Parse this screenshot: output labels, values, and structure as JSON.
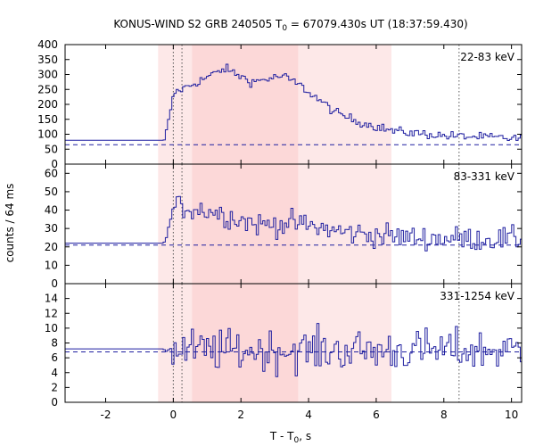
{
  "chart_data": {
    "type": "line",
    "title": "KONUS-WIND S2 GRB 240505 T",
    "title_sub": "0",
    "title_rest": " = 67079.430s UT (18:37:59.430)",
    "xlabel": "T - T",
    "xlabel_sub": "0",
    "xlabel_rest": ", s",
    "ylabel": "counts / 64 ms",
    "xlim": [
      -3.2,
      10.3
    ],
    "x_ticks": [
      -2,
      0,
      2,
      4,
      6,
      8,
      10
    ],
    "x_tick_labels": [
      "-2",
      "0",
      "2",
      "4",
      "6",
      "8",
      "10"
    ],
    "grid": false,
    "line_color": "#1f1fa0",
    "shade_color_light": "#fde8e8",
    "shade_color_dark": "#fcd8d8",
    "shaded_intervals": [
      {
        "x0": -0.45,
        "x1": 0.55,
        "tone": "light"
      },
      {
        "x0": 0.55,
        "x1": 3.7,
        "tone": "dark"
      },
      {
        "x0": 3.7,
        "x1": 6.45,
        "tone": "light"
      }
    ],
    "vertical_lines": [
      0.0,
      0.256,
      8.45
    ],
    "panels": [
      {
        "band": "22-83 keV",
        "ylim": [
          0,
          400
        ],
        "y_ticks": [
          0,
          50,
          100,
          150,
          200,
          250,
          300,
          350,
          400
        ],
        "y_tick_labels": [
          "0",
          "50",
          "100",
          "150",
          "200",
          "250",
          "300",
          "350",
          "400"
        ],
        "background": 65,
        "pre_level": 80,
        "peak_profile": [
          [
            -0.3,
            80
          ],
          [
            0.0,
            240
          ],
          [
            0.5,
            265
          ],
          [
            1.5,
            320
          ],
          [
            2.3,
            275
          ],
          [
            3.2,
            295
          ],
          [
            3.7,
            265
          ],
          [
            4.8,
            170
          ],
          [
            5.5,
            140
          ],
          [
            6.5,
            110
          ],
          [
            8.0,
            95
          ],
          [
            10.3,
            85
          ]
        ],
        "noise": 14
      },
      {
        "band": "83-331 keV",
        "ylim": [
          0,
          65
        ],
        "y_ticks": [
          0,
          10,
          20,
          30,
          40,
          50,
          60
        ],
        "y_tick_labels": [
          "0",
          "10",
          "20",
          "30",
          "40",
          "50",
          "60"
        ],
        "background": 21,
        "pre_level": 22,
        "peak_profile": [
          [
            -0.3,
            22
          ],
          [
            0.0,
            42
          ],
          [
            1.0,
            40
          ],
          [
            2.5,
            32
          ],
          [
            3.5,
            33
          ],
          [
            5.0,
            28
          ],
          [
            7.0,
            25
          ],
          [
            10.3,
            24
          ]
        ],
        "noise": 6
      },
      {
        "band": "331-1254 keV",
        "ylim": [
          0,
          16
        ],
        "y_ticks": [
          0,
          2,
          4,
          6,
          8,
          10,
          12,
          14
        ],
        "y_tick_labels": [
          "0",
          "2",
          "4",
          "6",
          "8",
          "10",
          "12",
          "14"
        ],
        "background": 6.8,
        "pre_level": 7.2,
        "peak_profile": [
          [
            -0.3,
            7.2
          ],
          [
            0.0,
            7.0
          ],
          [
            10.3,
            7.0
          ]
        ],
        "noise": 2.6
      }
    ]
  }
}
